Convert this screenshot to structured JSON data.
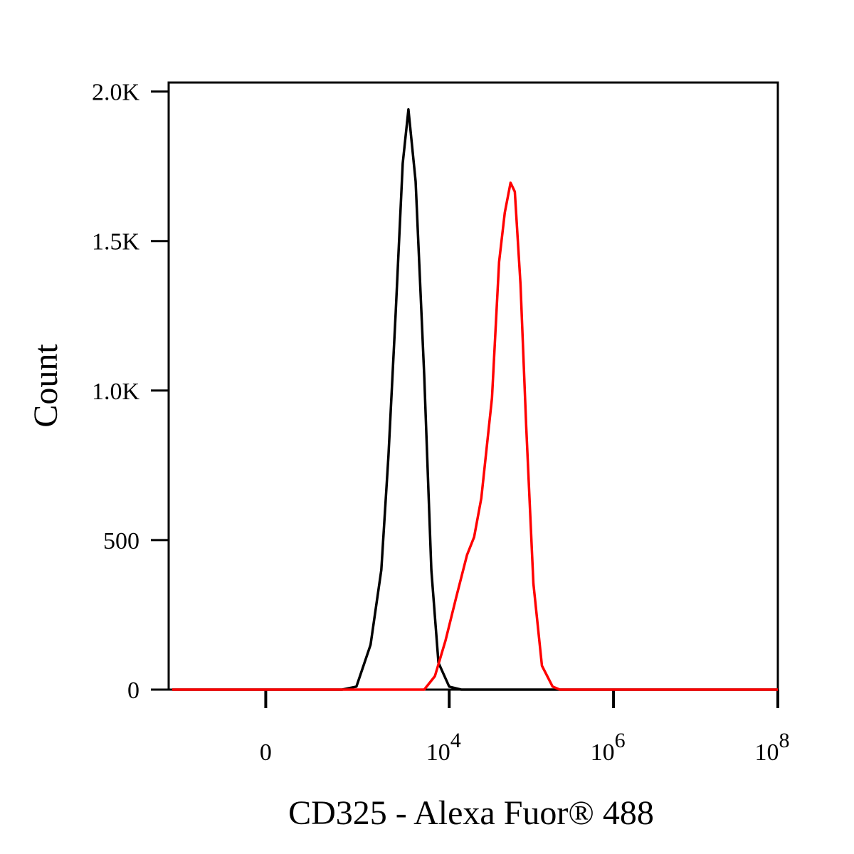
{
  "chart_data": {
    "type": "line",
    "x_label": "CD325 - Alexa Fuor® 488",
    "y_label": "Count",
    "x_scale": "arcsinh",
    "x_cofactor": 117,
    "xlim": [
      -885,
      100000000
    ],
    "xticks": [
      0,
      {
        "value": 10000,
        "label": "10",
        "power": "4"
      },
      {
        "value": 1000000,
        "label": "10",
        "power": "6"
      },
      {
        "value": 100000000,
        "label": "10",
        "power": "8"
      }
    ],
    "ylim": [
      0,
      2030
    ],
    "yticks": [
      0,
      500,
      {
        "value": 1000,
        "label": "1.0K"
      },
      {
        "value": 1500,
        "label": "1.5K"
      },
      {
        "value": 2000,
        "label": "2.0K"
      }
    ],
    "series": [
      {
        "color": "#000000",
        "x": [
          -800,
          490,
          737,
          1100,
          1490,
          1820,
          2230,
          2720,
          3190,
          3900,
          4960,
          6060,
          7400,
          10000,
          14000,
          100000000
        ],
        "values": [
          0,
          0,
          10,
          150,
          400,
          780,
          1260,
          1760,
          1940,
          1700,
          1050,
          400,
          90,
          10,
          0,
          0
        ]
      },
      {
        "color": "#ff0000",
        "x": [
          -800,
          4960,
          6690,
          9040,
          12200,
          16460,
          20100,
          24560,
          33160,
          40500,
          47500,
          55800,
          62900,
          73800,
          86600,
          105800,
          134400,
          181500,
          221700,
          100000000
        ],
        "values": [
          0,
          0,
          45,
          165,
          310,
          450,
          510,
          640,
          975,
          1430,
          1595,
          1695,
          1665,
          1355,
          880,
          355,
          80,
          10,
          0,
          0
        ]
      }
    ]
  }
}
